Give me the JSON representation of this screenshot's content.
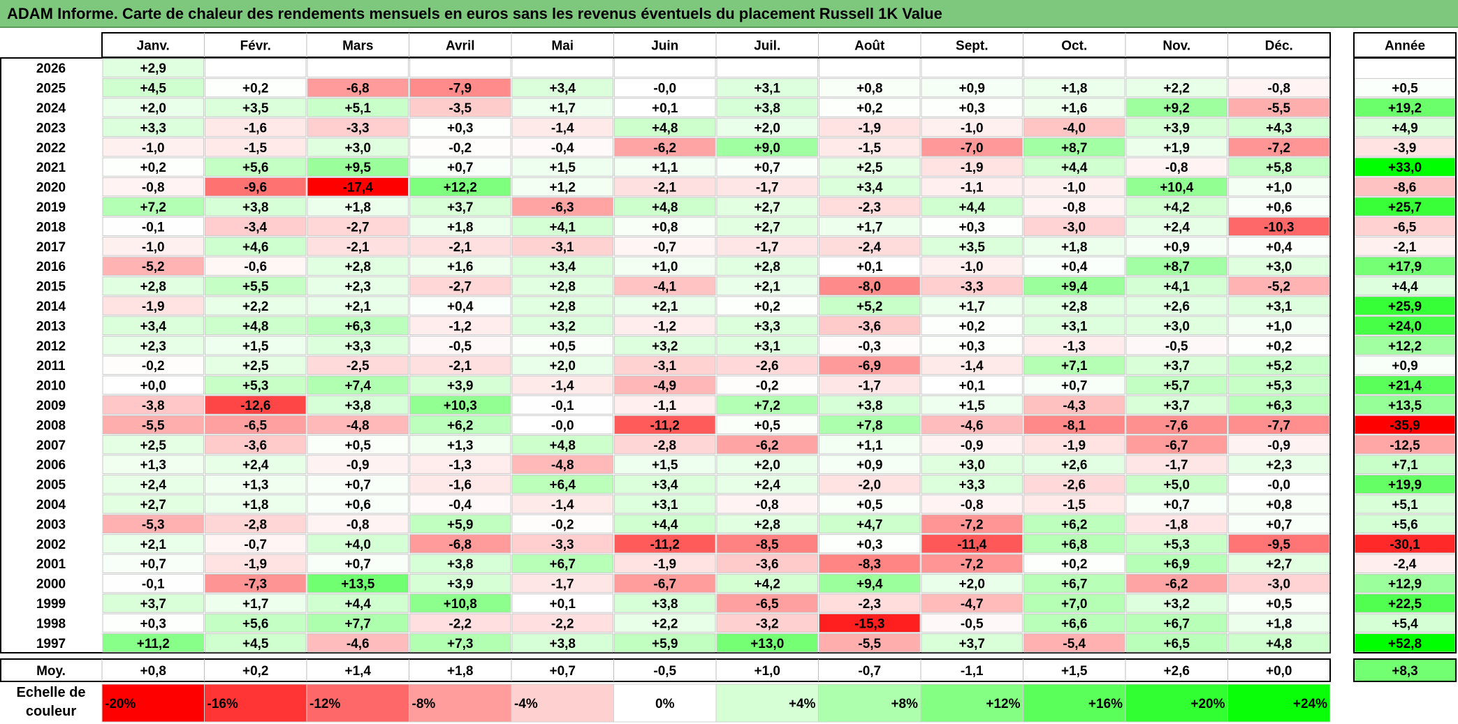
{
  "title": "ADAM Informe. Carte de chaleur des rendements mensuels en euros sans les revenus éventuels du placement Russell 1K Value",
  "chart_data": {
    "type": "heatmap",
    "columns": [
      "Janv.",
      "Févr.",
      "Mars",
      "Avril",
      "Mai",
      "Juin",
      "Juil.",
      "Août",
      "Sept.",
      "Oct.",
      "Nov.",
      "Déc."
    ],
    "year_column_label": "Année",
    "rows": [
      {
        "year": "2026",
        "months": [
          "+2,9",
          null,
          null,
          null,
          null,
          null,
          null,
          null,
          null,
          null,
          null,
          null
        ],
        "annual": null
      },
      {
        "year": "2025",
        "months": [
          "+4,5",
          "+0,2",
          "-6,8",
          "-7,9",
          "+3,4",
          "-0,0",
          "+3,1",
          "+0,8",
          "+0,9",
          "+1,8",
          "+2,2",
          "-0,8"
        ],
        "annual": "+0,5"
      },
      {
        "year": "2024",
        "months": [
          "+2,0",
          "+3,5",
          "+5,1",
          "-3,5",
          "+1,7",
          "+0,1",
          "+3,8",
          "+0,2",
          "+0,3",
          "+1,6",
          "+9,2",
          "-5,5"
        ],
        "annual": "+19,2"
      },
      {
        "year": "2023",
        "months": [
          "+3,3",
          "-1,6",
          "-3,3",
          "+0,3",
          "-1,4",
          "+4,8",
          "+2,0",
          "-1,9",
          "-1,0",
          "-4,0",
          "+3,9",
          "+4,3"
        ],
        "annual": "+4,9"
      },
      {
        "year": "2022",
        "months": [
          "-1,0",
          "-1,5",
          "+3,0",
          "-0,2",
          "-0,4",
          "-6,2",
          "+9,0",
          "-1,5",
          "-7,0",
          "+8,7",
          "+1,9",
          "-7,2"
        ],
        "annual": "-3,9"
      },
      {
        "year": "2021",
        "months": [
          "+0,2",
          "+5,6",
          "+9,5",
          "+0,7",
          "+1,5",
          "+1,1",
          "+0,7",
          "+2,5",
          "-1,9",
          "+4,4",
          "-0,8",
          "+5,8"
        ],
        "annual": "+33,0"
      },
      {
        "year": "2020",
        "months": [
          "-0,8",
          "-9,6",
          "-17,4",
          "+12,2",
          "+1,2",
          "-2,1",
          "-1,7",
          "+3,4",
          "-1,1",
          "-1,0",
          "+10,4",
          "+1,0"
        ],
        "annual": "-8,6"
      },
      {
        "year": "2019",
        "months": [
          "+7,2",
          "+3,8",
          "+1,8",
          "+3,7",
          "-6,3",
          "+4,8",
          "+2,7",
          "-2,3",
          "+4,4",
          "-0,8",
          "+4,2",
          "+0,6"
        ],
        "annual": "+25,7"
      },
      {
        "year": "2018",
        "months": [
          "-0,1",
          "-3,4",
          "-2,7",
          "+1,8",
          "+4,1",
          "+0,8",
          "+2,7",
          "+1,7",
          "+0,3",
          "-3,0",
          "+2,4",
          "-10,3"
        ],
        "annual": "-6,5"
      },
      {
        "year": "2017",
        "months": [
          "-1,0",
          "+4,6",
          "-2,1",
          "-2,1",
          "-3,1",
          "-0,7",
          "-1,7",
          "-2,4",
          "+3,5",
          "+1,8",
          "+0,9",
          "+0,4"
        ],
        "annual": "-2,1"
      },
      {
        "year": "2016",
        "months": [
          "-5,2",
          "-0,6",
          "+2,8",
          "+1,6",
          "+3,4",
          "+1,0",
          "+2,8",
          "+0,1",
          "-1,0",
          "+0,4",
          "+8,7",
          "+3,0"
        ],
        "annual": "+17,9"
      },
      {
        "year": "2015",
        "months": [
          "+2,8",
          "+5,5",
          "+2,3",
          "-2,7",
          "+2,8",
          "-4,1",
          "+2,1",
          "-8,0",
          "-3,3",
          "+9,4",
          "+4,1",
          "-5,2"
        ],
        "annual": "+4,4"
      },
      {
        "year": "2014",
        "months": [
          "-1,9",
          "+2,2",
          "+2,1",
          "+0,4",
          "+2,8",
          "+2,1",
          "+0,2",
          "+5,2",
          "+1,7",
          "+2,8",
          "+2,6",
          "+3,1"
        ],
        "annual": "+25,9"
      },
      {
        "year": "2013",
        "months": [
          "+3,4",
          "+4,8",
          "+6,3",
          "-1,2",
          "+3,2",
          "-1,2",
          "+3,3",
          "-3,6",
          "+0,2",
          "+3,1",
          "+3,0",
          "+1,0"
        ],
        "annual": "+24,0"
      },
      {
        "year": "2012",
        "months": [
          "+2,3",
          "+1,5",
          "+3,3",
          "-0,5",
          "+0,5",
          "+3,2",
          "+3,1",
          "-0,3",
          "+0,3",
          "-1,3",
          "-0,5",
          "+0,2"
        ],
        "annual": "+12,2"
      },
      {
        "year": "2011",
        "months": [
          "-0,2",
          "+2,5",
          "-2,5",
          "-2,1",
          "+2,0",
          "-3,1",
          "-2,6",
          "-6,9",
          "-1,4",
          "+7,1",
          "+3,7",
          "+5,2"
        ],
        "annual": "+0,9"
      },
      {
        "year": "2010",
        "months": [
          "+0,0",
          "+5,3",
          "+7,4",
          "+3,9",
          "-1,4",
          "-4,9",
          "-0,2",
          "-1,7",
          "+0,1",
          "+0,7",
          "+5,7",
          "+5,3"
        ],
        "annual": "+21,4"
      },
      {
        "year": "2009",
        "months": [
          "-3,8",
          "-12,6",
          "+3,8",
          "+10,3",
          "-0,1",
          "-1,1",
          "+7,2",
          "+3,8",
          "+1,5",
          "-4,3",
          "+3,7",
          "+6,3"
        ],
        "annual": "+13,5"
      },
      {
        "year": "2008",
        "months": [
          "-5,5",
          "-6,5",
          "-4,8",
          "+6,2",
          "-0,0",
          "-11,2",
          "+0,5",
          "+7,8",
          "-4,6",
          "-8,1",
          "-7,6",
          "-7,7"
        ],
        "annual": "-35,9"
      },
      {
        "year": "2007",
        "months": [
          "+2,5",
          "-3,6",
          "+0,5",
          "+1,3",
          "+4,8",
          "-2,8",
          "-6,2",
          "+1,1",
          "-0,9",
          "-1,9",
          "-6,7",
          "-0,9"
        ],
        "annual": "-12,5"
      },
      {
        "year": "2006",
        "months": [
          "+1,3",
          "+2,4",
          "-0,9",
          "-1,3",
          "-4,8",
          "+1,5",
          "+2,0",
          "+0,9",
          "+3,0",
          "+2,6",
          "-1,7",
          "+2,3"
        ],
        "annual": "+7,1"
      },
      {
        "year": "2005",
        "months": [
          "+2,4",
          "+1,3",
          "+0,7",
          "-1,6",
          "+6,4",
          "+3,4",
          "+2,4",
          "-2,0",
          "+3,3",
          "-2,6",
          "+5,0",
          "-0,0"
        ],
        "annual": "+19,9"
      },
      {
        "year": "2004",
        "months": [
          "+2,7",
          "+1,8",
          "+0,6",
          "-0,4",
          "-1,4",
          "+3,1",
          "-0,8",
          "+0,5",
          "-0,8",
          "-1,5",
          "+0,7",
          "+0,8"
        ],
        "annual": "+5,1"
      },
      {
        "year": "2003",
        "months": [
          "-5,3",
          "-2,8",
          "-0,8",
          "+5,9",
          "-0,2",
          "+4,4",
          "+2,8",
          "+4,7",
          "-7,2",
          "+6,2",
          "-1,8",
          "+0,7"
        ],
        "annual": "+5,6"
      },
      {
        "year": "2002",
        "months": [
          "+2,1",
          "-0,7",
          "+4,0",
          "-6,8",
          "-3,3",
          "-11,2",
          "-8,5",
          "+0,3",
          "-11,4",
          "+6,8",
          "+5,3",
          "-9,5"
        ],
        "annual": "-30,1"
      },
      {
        "year": "2001",
        "months": [
          "+0,7",
          "-1,9",
          "+0,7",
          "+3,8",
          "+6,7",
          "-1,9",
          "-3,6",
          "-8,3",
          "-7,2",
          "+0,2",
          "+6,9",
          "+2,7"
        ],
        "annual": "-2,4"
      },
      {
        "year": "2000",
        "months": [
          "-0,1",
          "-7,3",
          "+13,5",
          "+3,9",
          "-1,7",
          "-6,7",
          "+4,2",
          "+9,4",
          "+2,0",
          "+6,7",
          "-6,2",
          "-3,0"
        ],
        "annual": "+12,9"
      },
      {
        "year": "1999",
        "months": [
          "+3,7",
          "+1,7",
          "+4,4",
          "+10,8",
          "+0,1",
          "+3,8",
          "-6,5",
          "-2,3",
          "-4,7",
          "+7,0",
          "+3,2",
          "+0,5"
        ],
        "annual": "+22,5"
      },
      {
        "year": "1998",
        "months": [
          "+0,3",
          "+5,6",
          "+7,7",
          "-2,2",
          "-2,2",
          "+2,2",
          "-3,2",
          "-15,3",
          "-0,5",
          "+6,6",
          "+6,7",
          "+1,8"
        ],
        "annual": "+5,4"
      },
      {
        "year": "1997",
        "months": [
          "+11,2",
          "+4,5",
          "-4,6",
          "+7,3",
          "+3,8",
          "+5,9",
          "+13,0",
          "-5,5",
          "+3,7",
          "-5,4",
          "+6,5",
          "+4,8"
        ],
        "annual": "+52,8"
      }
    ],
    "average_row": {
      "label": "Moy.",
      "months": [
        "+0,8",
        "+0,2",
        "+1,4",
        "+1,8",
        "+0,7",
        "-0,5",
        "+1,0",
        "-0,7",
        "-1,1",
        "+1,5",
        "+2,6",
        "+0,0"
      ],
      "annual": "+8,3"
    },
    "color_scale": {
      "label": "Echelle de couleur",
      "stops": [
        {
          "label": "-20%",
          "value": -20,
          "color": "#ff0000"
        },
        {
          "label": "-16%",
          "value": -16,
          "color": "#ff3434"
        },
        {
          "label": "-12%",
          "value": -12,
          "color": "#ff6868"
        },
        {
          "label": "-8%",
          "value": -8,
          "color": "#ff9c9c"
        },
        {
          "label": "-4%",
          "value": -4,
          "color": "#ffd0d0"
        },
        {
          "label": "0%",
          "value": 0,
          "color": "#ffffff"
        },
        {
          "label": "+4%",
          "value": 4,
          "color": "#d6ffd6"
        },
        {
          "label": "+8%",
          "value": 8,
          "color": "#adffad"
        },
        {
          "label": "+12%",
          "value": 12,
          "color": "#84ff84"
        },
        {
          "label": "+16%",
          "value": 16,
          "color": "#5aff5a"
        },
        {
          "label": "+20%",
          "value": 20,
          "color": "#31ff31"
        },
        {
          "label": "+24%",
          "value": 24,
          "color": "#08ff08"
        }
      ]
    }
  }
}
